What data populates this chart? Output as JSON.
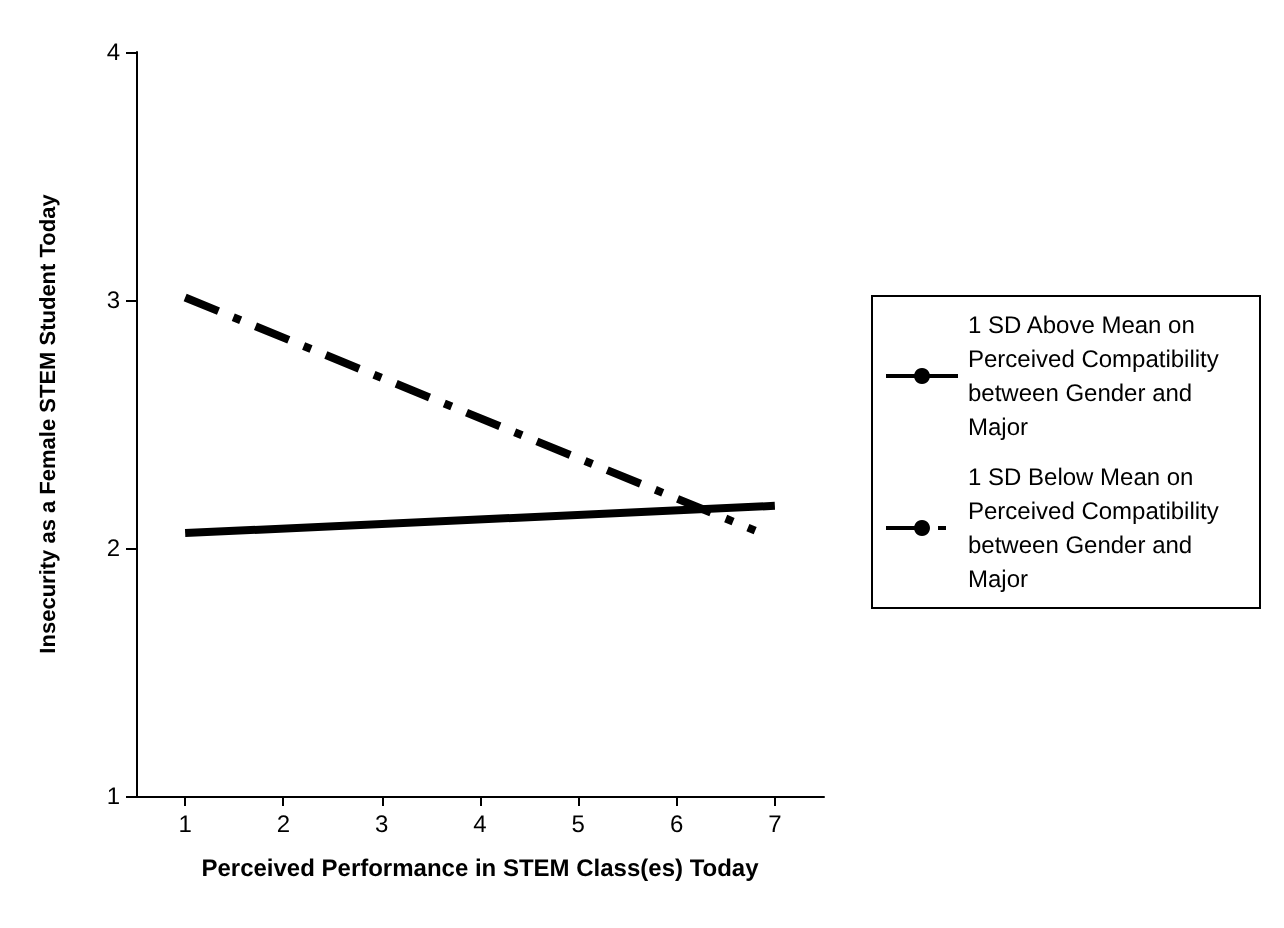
{
  "chart_data": {
    "type": "line",
    "xlabel": "Perceived Performance in STEM Class(es) Today",
    "ylabel": "Insecurity as a Female STEM Student Today",
    "series": [
      {
        "name": "1 SD Above Mean on Perceived Compatibility between Gender and Major",
        "color": "#000000",
        "line_style": "solid",
        "x": [
          1,
          7
        ],
        "values": [
          2.06,
          2.17
        ]
      },
      {
        "name": "1 SD Below Mean on Perceived Compatibility between Gender and Major",
        "color": "#000000",
        "line_style": "dashdot",
        "x": [
          1,
          6.8
        ],
        "values": [
          3.01,
          2.07
        ]
      }
    ],
    "xlim": [
      0.5,
      7.5
    ],
    "xticks": [
      1,
      2,
      3,
      4,
      5,
      6,
      7
    ],
    "ylim": [
      1,
      4
    ],
    "yticks": [
      1,
      2,
      3,
      4
    ],
    "grid": false,
    "legend": "right",
    "marker": "none"
  }
}
